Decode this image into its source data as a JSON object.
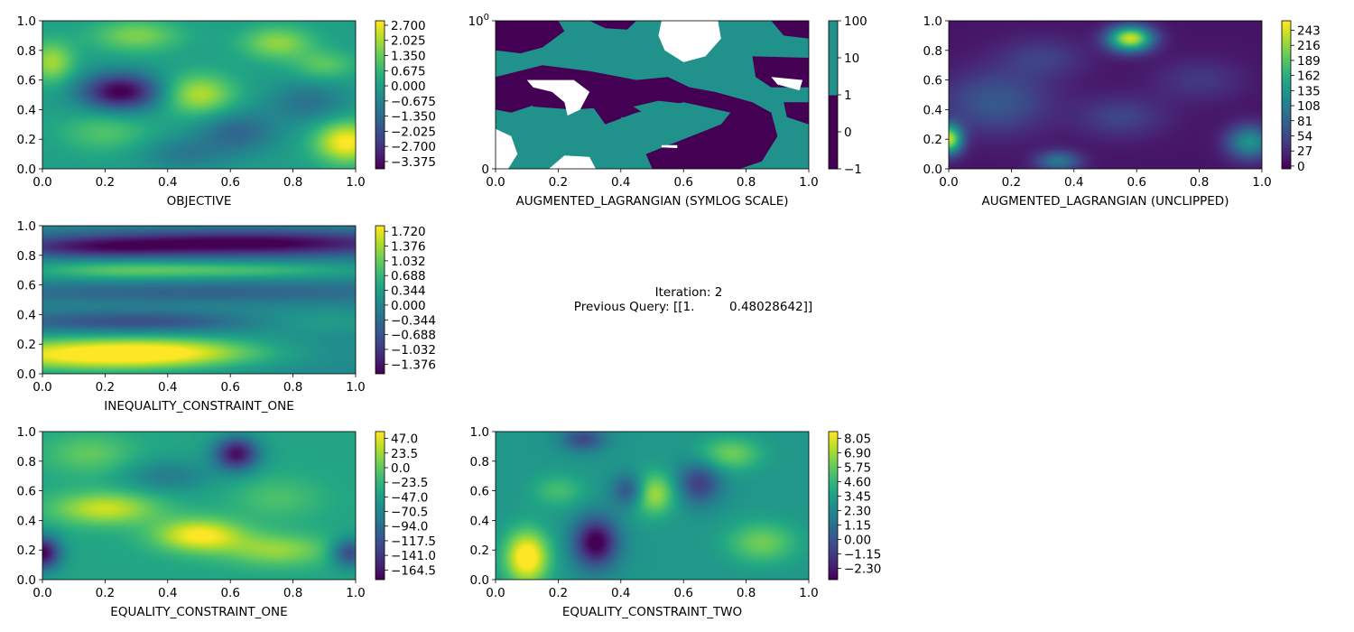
{
  "chart_data": [
    {
      "type": "heatmap",
      "id": "objective",
      "xlabel": "OBJECTIVE",
      "xlim": [
        0,
        1
      ],
      "ylim": [
        0,
        1
      ],
      "xticks": [
        "0.0",
        "0.2",
        "0.4",
        "0.6",
        "0.8",
        "1.0"
      ],
      "yticks": [
        "0.0",
        "0.2",
        "0.4",
        "0.6",
        "0.8",
        "1.0"
      ],
      "colorbar": {
        "vmin": -3.7,
        "vmax": 2.9,
        "ticks": [
          2.7,
          2.025,
          1.35,
          0.675,
          0.0,
          -0.675,
          -1.35,
          -2.025,
          -2.7,
          -3.375
        ],
        "tick_labels": [
          "2.700",
          "2.025",
          "1.350",
          "0.675",
          "0.000",
          "−0.675",
          "−1.350",
          "−2.025",
          "−2.700",
          "−3.375"
        ]
      },
      "colormap": "viridis",
      "field": {
        "base": 0.0,
        "bumps": [
          [
            0.25,
            0.52,
            0.09,
            0.09,
            -3.8
          ],
          [
            0.97,
            0.18,
            0.07,
            0.1,
            3.0
          ],
          [
            0.5,
            0.5,
            0.08,
            0.1,
            2.2
          ],
          [
            0.03,
            0.72,
            0.05,
            0.1,
            2.0
          ],
          [
            0.3,
            0.9,
            0.1,
            0.08,
            1.6
          ],
          [
            0.75,
            0.85,
            0.08,
            0.08,
            1.8
          ],
          [
            0.2,
            0.25,
            0.1,
            0.1,
            1.1
          ],
          [
            0.62,
            0.25,
            0.09,
            0.1,
            -1.5
          ],
          [
            0.85,
            0.45,
            0.09,
            0.1,
            -1.2
          ],
          [
            0.45,
            0.1,
            0.1,
            0.08,
            -1.0
          ],
          [
            0.9,
            0.7,
            0.07,
            0.07,
            1.2
          ]
        ]
      }
    },
    {
      "type": "heatmap",
      "id": "augmented-lagrangian-symlog",
      "xlabel": "AUGMENTED_LAGRANGIAN (SYMLOG SCALE)",
      "xlim": [
        0,
        1
      ],
      "ylim": [
        0,
        1
      ],
      "xticks": [
        "0.0",
        "0.2",
        "0.4",
        "0.6",
        "0.8",
        "1.0"
      ],
      "yticks": [
        "0",
        "10^0"
      ],
      "colorbar": {
        "levels": [
          "−1",
          "0",
          "1",
          "10",
          "100"
        ],
        "colors": [
          "#440154",
          "#440154",
          "#440154",
          "#21918c",
          "#21918c"
        ]
      },
      "regions": [
        {
          "name": "purple",
          "color": "#440154"
        },
        {
          "name": "teal",
          "color": "#21918c"
        },
        {
          "name": "white",
          "color": "#ffffff"
        }
      ]
    },
    {
      "type": "heatmap",
      "id": "augmented-lagrangian-unclipped",
      "xlabel": "AUGMENTED_LAGRANGIAN (UNCLIPPED)",
      "xlim": [
        0,
        1
      ],
      "ylim": [
        0,
        1
      ],
      "xticks": [
        "0.0",
        "0.2",
        "0.4",
        "0.6",
        "0.8",
        "1.0"
      ],
      "yticks": [
        "0.0",
        "0.2",
        "0.4",
        "0.6",
        "0.8",
        "1.0"
      ],
      "colorbar": {
        "vmin": -5,
        "vmax": 260,
        "ticks": [
          243,
          216,
          189,
          162,
          135,
          108,
          81,
          54,
          27,
          0
        ],
        "tick_labels": [
          "243",
          "216",
          "189",
          "162",
          "135",
          "108",
          "81",
          "54",
          "27",
          "0"
        ]
      },
      "colormap": "viridis",
      "field": {
        "base": 10,
        "bumps": [
          [
            0.58,
            0.88,
            0.05,
            0.06,
            230
          ],
          [
            0.0,
            0.2,
            0.03,
            0.07,
            220
          ],
          [
            0.96,
            0.18,
            0.05,
            0.08,
            120
          ],
          [
            0.35,
            0.05,
            0.05,
            0.05,
            90
          ],
          [
            0.15,
            0.45,
            0.12,
            0.15,
            60
          ],
          [
            0.55,
            0.35,
            0.1,
            0.1,
            40
          ],
          [
            0.8,
            0.6,
            0.1,
            0.1,
            30
          ],
          [
            0.3,
            0.75,
            0.1,
            0.1,
            35
          ]
        ]
      }
    },
    {
      "type": "heatmap",
      "id": "inequality-constraint-one",
      "xlabel": "INEQUALITY_CONSTRAINT_ONE",
      "xlim": [
        0,
        1
      ],
      "ylim": [
        0,
        1
      ],
      "xticks": [
        "0.0",
        "0.2",
        "0.4",
        "0.6",
        "0.8",
        "1.0"
      ],
      "yticks": [
        "0.0",
        "0.2",
        "0.4",
        "0.6",
        "0.8",
        "1.0"
      ],
      "colorbar": {
        "vmin": -1.6,
        "vmax": 1.85,
        "ticks": [
          1.72,
          1.376,
          1.032,
          0.688,
          0.344,
          0.0,
          -0.344,
          -0.688,
          -1.032,
          -1.376
        ],
        "tick_labels": [
          "1.720",
          "1.376",
          "1.032",
          "0.688",
          "0.344",
          "0.000",
          "−0.344",
          "−0.688",
          "−1.032",
          "−1.376"
        ]
      },
      "colormap": "viridis",
      "field": {
        "base": 0.0,
        "bumps": [
          [
            0.15,
            0.13,
            0.3,
            0.08,
            1.9
          ],
          [
            0.45,
            0.15,
            0.2,
            0.07,
            0.8
          ],
          [
            0.65,
            0.88,
            0.4,
            0.06,
            -1.7
          ],
          [
            0.15,
            0.85,
            0.2,
            0.05,
            -0.8
          ],
          [
            0.5,
            0.55,
            0.6,
            0.05,
            -0.5
          ],
          [
            0.3,
            0.35,
            0.3,
            0.05,
            -0.8
          ],
          [
            0.6,
            0.7,
            0.3,
            0.04,
            0.8
          ],
          [
            0.2,
            0.7,
            0.2,
            0.05,
            0.6
          ],
          [
            0.85,
            0.35,
            0.2,
            0.06,
            0.4
          ]
        ]
      }
    },
    {
      "type": "heatmap",
      "id": "equality-constraint-one",
      "xlabel": "EQUALITY_CONSTRAINT_ONE",
      "xlim": [
        0,
        1
      ],
      "ylim": [
        0,
        1
      ],
      "xticks": [
        "0.0",
        "0.2",
        "0.4",
        "0.6",
        "0.8",
        "1.0"
      ],
      "yticks": [
        "0.0",
        "0.2",
        "0.4",
        "0.6",
        "0.8",
        "1.0"
      ],
      "colorbar": {
        "vmin": -180,
        "vmax": 58,
        "ticks": [
          47.0,
          23.5,
          0.0,
          -23.5,
          -47.0,
          -70.5,
          -94.0,
          -117.5,
          -141.0,
          -164.5
        ],
        "tick_labels": [
          "47.0",
          "23.5",
          "0.0",
          "−23.5",
          "−47.0",
          "−70.5",
          "−94.0",
          "−117.5",
          "−141.0",
          "−164.5"
        ]
      },
      "colormap": "viridis",
      "field": {
        "base": -40,
        "bumps": [
          [
            0.5,
            0.3,
            0.1,
            0.08,
            100
          ],
          [
            0.2,
            0.48,
            0.12,
            0.08,
            80
          ],
          [
            0.75,
            0.2,
            0.12,
            0.08,
            60
          ],
          [
            0.15,
            0.85,
            0.1,
            0.1,
            40
          ],
          [
            0.62,
            0.85,
            0.05,
            0.08,
            -130
          ],
          [
            0.0,
            0.18,
            0.04,
            0.08,
            -140
          ],
          [
            0.98,
            0.18,
            0.04,
            0.07,
            -90
          ],
          [
            0.75,
            0.55,
            0.1,
            0.1,
            30
          ],
          [
            0.4,
            0.7,
            0.1,
            0.08,
            -40
          ]
        ]
      }
    },
    {
      "type": "heatmap",
      "id": "equality-constraint-two",
      "xlabel": "EQUALITY_CONSTRAINT_TWO",
      "xlim": [
        0,
        1
      ],
      "ylim": [
        0,
        1
      ],
      "xticks": [
        "0.0",
        "0.2",
        "0.4",
        "0.6",
        "0.8",
        "1.0"
      ],
      "yticks": [
        "0.0",
        "0.2",
        "0.4",
        "0.6",
        "0.8",
        "1.0"
      ],
      "colorbar": {
        "vmin": -3.2,
        "vmax": 8.6,
        "ticks": [
          8.05,
          6.9,
          5.75,
          4.6,
          3.45,
          2.3,
          1.15,
          0.0,
          -1.15,
          -2.3
        ],
        "tick_labels": [
          "8.05",
          "6.90",
          "5.75",
          "4.60",
          "3.45",
          "2.30",
          "1.15",
          "0.00",
          "−1.15",
          "−2.30"
        ]
      },
      "colormap": "viridis",
      "field": {
        "base": 3.0,
        "bumps": [
          [
            0.1,
            0.15,
            0.05,
            0.13,
            6.5
          ],
          [
            0.5,
            0.58,
            0.05,
            0.1,
            4.5
          ],
          [
            0.32,
            0.25,
            0.05,
            0.12,
            -6.5
          ],
          [
            0.43,
            0.6,
            0.04,
            0.08,
            -4.0
          ],
          [
            0.65,
            0.65,
            0.05,
            0.1,
            -4.0
          ],
          [
            0.28,
            0.95,
            0.05,
            0.06,
            -3.5
          ],
          [
            0.85,
            0.25,
            0.08,
            0.1,
            3.0
          ],
          [
            0.75,
            0.85,
            0.07,
            0.08,
            3.0
          ],
          [
            0.2,
            0.6,
            0.06,
            0.08,
            2.0
          ]
        ]
      }
    }
  ],
  "info": {
    "iteration": "Iteration: 2",
    "previous_query": "Previous Query: [[1.         0.48028642]]"
  }
}
